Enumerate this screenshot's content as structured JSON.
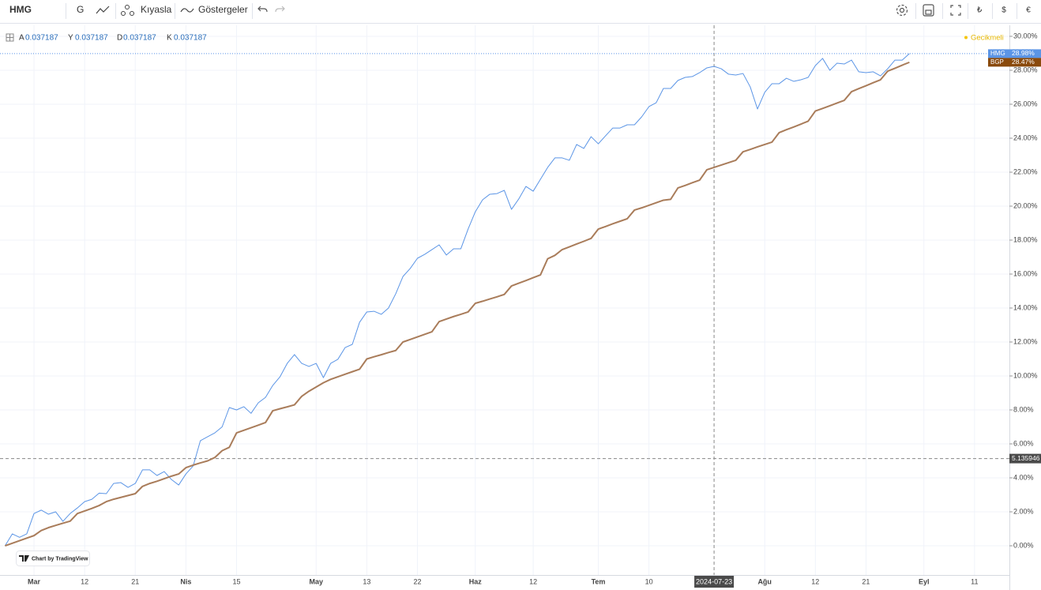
{
  "chart_data": {
    "type": "line",
    "toolbar": {
      "symbol": "HMG",
      "interval": "G",
      "compare": "Kıyasla",
      "indicators": "Göstergeler",
      "currency_buttons": [
        "₺",
        "$",
        "€"
      ]
    },
    "ohlc_legend": [
      {
        "key": "A",
        "value": 0.037187
      },
      {
        "key": "Y",
        "value": 0.037187
      },
      {
        "key": "D",
        "value": 0.037187
      },
      {
        "key": "K",
        "value": 0.037187
      }
    ],
    "status": "Gecikmeli",
    "watermark": "Chart by TradingView",
    "categories": [
      null,
      null,
      null,
      null,
      "Mar",
      null,
      null,
      null,
      null,
      null,
      null,
      "12",
      null,
      null,
      null,
      null,
      null,
      null,
      "21",
      null,
      null,
      null,
      null,
      null,
      null,
      "Nis",
      null,
      null,
      null,
      null,
      null,
      null,
      "15",
      null,
      null,
      null,
      null,
      null,
      null,
      null,
      null,
      null,
      null,
      "May",
      null,
      null,
      null,
      null,
      null,
      null,
      "13",
      null,
      null,
      null,
      null,
      null,
      null,
      "22",
      null,
      null,
      null,
      null,
      null,
      null,
      null,
      "Haz",
      null,
      null,
      null,
      null,
      null,
      null,
      null,
      "12",
      null,
      null,
      null,
      null,
      null,
      null,
      null,
      null,
      "Tem",
      null,
      null,
      null,
      null,
      null,
      null,
      "10",
      null,
      null,
      null,
      null,
      null,
      null,
      null,
      null,
      "2024-07-23",
      null,
      null,
      null,
      null,
      null,
      null,
      "Ağu",
      null,
      null,
      null,
      null,
      null,
      null,
      "12",
      null,
      null,
      null,
      null,
      null,
      null,
      "21",
      null,
      null,
      null,
      null,
      null,
      null,
      null,
      "Eyl",
      null,
      null,
      null,
      null,
      null,
      null,
      "11",
      null,
      null,
      null,
      null
    ],
    "series": [
      {
        "name": "HMG",
        "color": "#5b95e6",
        "line_width": 1,
        "price_line": true,
        "last_label": "28.98%",
        "values": [
          0,
          0.7,
          0.5,
          0.7,
          1.9,
          2.1,
          1.86,
          2.0,
          1.44,
          1.9,
          2.23,
          2.6,
          2.74,
          3.1,
          3.07,
          3.67,
          3.72,
          3.44,
          3.67,
          4.47,
          4.47,
          4.14,
          4.37,
          3.9,
          3.58,
          4.23,
          4.7,
          6.19,
          6.42,
          6.65,
          7.0,
          8.14,
          8.0,
          8.19,
          7.8,
          8.42,
          8.74,
          9.44,
          9.95,
          10.74,
          11.26,
          10.74,
          10.56,
          10.74,
          9.9,
          10.74,
          10.98,
          11.67,
          11.86,
          13.16,
          13.77,
          13.81,
          13.63,
          14.0,
          14.84,
          15.86,
          16.33,
          16.93,
          17.16,
          17.44,
          17.72,
          17.12,
          17.49,
          17.49,
          18.65,
          19.67,
          20.37,
          20.7,
          20.74,
          20.93,
          19.81,
          20.42,
          21.16,
          20.88,
          21.58,
          22.28,
          22.84,
          22.84,
          22.7,
          23.63,
          23.4,
          24.09,
          23.67,
          24.14,
          24.6,
          24.6,
          24.79,
          24.79,
          25.26,
          25.86,
          26.09,
          26.93,
          26.93,
          27.4,
          27.58,
          27.63,
          27.86,
          28.14,
          28.23,
          28.09,
          27.77,
          27.72,
          27.81,
          27.02,
          25.72,
          26.7,
          27.21,
          27.21,
          27.53,
          27.35,
          27.44,
          27.58,
          28.28,
          28.7,
          28.0,
          28.42,
          28.37,
          28.6,
          27.91,
          27.86,
          27.91,
          27.67,
          28.09,
          28.6,
          28.6,
          28.98,
          null,
          null,
          null,
          null,
          null,
          null,
          null,
          null,
          null,
          null,
          null,
          null,
          null
        ]
      },
      {
        "name": "BGP",
        "color": "#a97c5a",
        "line_width": 2,
        "price_line": false,
        "last_label": "28.47%",
        "label_color": "#8a4a0c",
        "values": [
          0,
          0.15,
          0.3,
          0.45,
          0.6,
          0.9,
          1.07,
          1.2,
          1.33,
          1.45,
          1.9,
          2.05,
          2.2,
          2.37,
          2.6,
          2.74,
          2.85,
          2.96,
          3.07,
          3.5,
          3.67,
          3.8,
          3.95,
          4.1,
          4.23,
          4.6,
          4.75,
          4.88,
          5.0,
          5.2,
          5.6,
          5.8,
          6.65,
          6.8,
          6.95,
          7.1,
          7.26,
          7.95,
          8.07,
          8.18,
          8.3,
          8.8,
          9.1,
          9.35,
          9.6,
          9.8,
          9.95,
          10.1,
          10.25,
          10.4,
          11.0,
          11.13,
          11.25,
          11.38,
          11.5,
          12.0,
          12.15,
          12.3,
          12.45,
          12.6,
          13.2,
          13.35,
          13.5,
          13.63,
          13.77,
          14.28,
          14.4,
          14.53,
          14.66,
          14.8,
          15.3,
          15.46,
          15.62,
          15.79,
          15.95,
          16.9,
          17.1,
          17.44,
          17.6,
          17.77,
          17.93,
          18.1,
          18.65,
          18.8,
          18.96,
          19.11,
          19.26,
          19.77,
          19.9,
          20.05,
          20.2,
          20.35,
          20.4,
          21.07,
          21.22,
          21.38,
          21.53,
          22.14,
          22.28,
          22.42,
          22.56,
          22.7,
          23.2,
          23.34,
          23.49,
          23.63,
          23.77,
          24.33,
          24.5,
          24.66,
          24.83,
          25.0,
          25.6,
          25.75,
          25.91,
          26.07,
          26.23,
          26.74,
          26.92,
          27.09,
          27.27,
          27.44,
          27.95,
          28.12,
          28.3,
          28.47,
          null,
          null,
          null,
          null,
          null,
          null,
          null,
          null,
          null,
          null,
          null,
          null,
          null
        ]
      }
    ],
    "ylim": [
      -1.72,
      30.65
    ],
    "yticks": [
      {
        "value": 0,
        "label": "0.00%"
      },
      {
        "value": 2,
        "label": "2.00%"
      },
      {
        "value": 4,
        "label": "4.00%"
      },
      {
        "value": 6,
        "label": "6.00%"
      },
      {
        "value": 8,
        "label": "8.00%"
      },
      {
        "value": 10,
        "label": "10.00%"
      },
      {
        "value": 12,
        "label": "12.00%"
      },
      {
        "value": 14,
        "label": "14.00%"
      },
      {
        "value": 16,
        "label": "16.00%"
      },
      {
        "value": 18,
        "label": "18.00%"
      },
      {
        "value": 20,
        "label": "20.00%"
      },
      {
        "value": 22,
        "label": "22.00%"
      },
      {
        "value": 24,
        "label": "24.00%"
      },
      {
        "value": 26,
        "label": "26.00%"
      },
      {
        "value": 28,
        "label": "28.00%"
      },
      {
        "value": 30,
        "label": "30.00%"
      }
    ],
    "grid": true,
    "crosshair": {
      "x": "2024-07-23",
      "y": 5.135946
    }
  }
}
